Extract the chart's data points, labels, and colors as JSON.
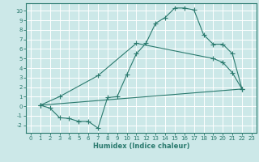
{
  "xlabel": "Humidex (Indice chaleur)",
  "xlim": [
    -0.5,
    23.5
  ],
  "ylim": [
    -2.8,
    10.8
  ],
  "xticks": [
    0,
    1,
    2,
    3,
    4,
    5,
    6,
    7,
    8,
    9,
    10,
    11,
    12,
    13,
    14,
    15,
    16,
    17,
    18,
    19,
    20,
    21,
    22,
    23
  ],
  "yticks": [
    -2,
    -1,
    0,
    1,
    2,
    3,
    4,
    5,
    6,
    7,
    8,
    9,
    10
  ],
  "bg_color": "#cce8e8",
  "line_color": "#2a7a6e",
  "grid_color": "#ffffff",
  "curve1_x": [
    1,
    2,
    3,
    4,
    5,
    6,
    7,
    8,
    9,
    10,
    11,
    12,
    13,
    14,
    15,
    16,
    17,
    18,
    19,
    20,
    21,
    22
  ],
  "curve1_y": [
    0.1,
    -0.2,
    -1.2,
    -1.3,
    -1.6,
    -1.6,
    -2.3,
    0.9,
    1.0,
    3.3,
    5.5,
    6.6,
    8.7,
    9.3,
    10.3,
    10.3,
    10.1,
    7.5,
    6.5,
    6.5,
    5.5,
    1.8
  ],
  "curve2_x": [
    1,
    3,
    7,
    11,
    19,
    20,
    21,
    22
  ],
  "curve2_y": [
    0.1,
    1.0,
    3.2,
    6.6,
    5.0,
    4.6,
    3.5,
    1.8
  ],
  "curve3_x": [
    1,
    22
  ],
  "curve3_y": [
    0.1,
    1.8
  ]
}
